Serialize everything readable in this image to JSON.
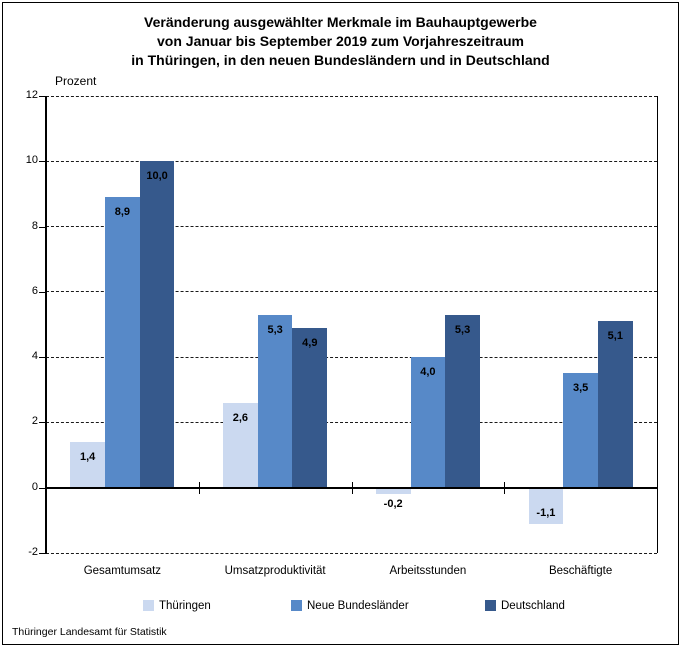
{
  "title": {
    "lines": [
      "Veränderung ausgewählter Merkmale im Bauhauptgewerbe",
      "von Januar bis September 2019 zum Vorjahreszeitraum",
      "in Thüringen, in den neuen Bundesländern und in Deutschland"
    ]
  },
  "footer": {
    "source": "Thüringer Landesamt für Statistik"
  },
  "chart_data": {
    "type": "bar",
    "title": "Veränderung ausgewählter Merkmale im Bauhauptgewerbe von Januar bis September 2019 zum Vorjahreszeitraum in Thüringen, in den neuen Bundesländern und in Deutschland",
    "ylabel": "Prozent",
    "xlabel": "",
    "ylim": [
      -2,
      12
    ],
    "yticks": [
      12,
      10,
      8,
      6,
      4,
      2,
      0,
      -2
    ],
    "grid": "horizontal-dashed",
    "legend_position": "bottom",
    "value_label_decimal_separator": ",",
    "categories": [
      "Gesamtumsatz",
      "Umsatzproduktivität",
      "Arbeitsstunden",
      "Beschäftigte"
    ],
    "series": [
      {
        "name": "Thüringen",
        "color": "#CBD9F0",
        "values": [
          1.4,
          2.6,
          -0.2,
          -1.1
        ]
      },
      {
        "name": "Neue Bundesländer",
        "color": "#5789C8",
        "values": [
          8.9,
          5.3,
          4.0,
          3.5
        ]
      },
      {
        "name": "Deutschland",
        "color": "#36598C",
        "values": [
          10.0,
          4.9,
          5.3,
          5.1
        ]
      }
    ],
    "axis_color": "#000000",
    "text_color": "#000000"
  }
}
